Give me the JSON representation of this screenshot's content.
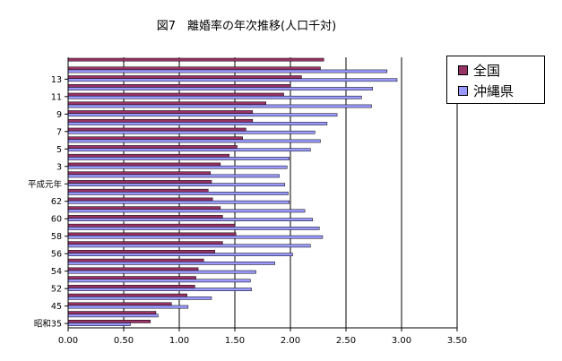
{
  "chart_data": {
    "type": "bar",
    "orientation": "horizontal",
    "title": "図7　離婚率の年次推移(人口千対)",
    "xlim": [
      0,
      3.5
    ],
    "x_ticks": [
      "0.00",
      "0.50",
      "1.00",
      "1.50",
      "2.00",
      "2.50",
      "3.00",
      "3.50"
    ],
    "grid": "vertical",
    "legend_position": "right",
    "categories": [
      "昭和35",
      "",
      "45",
      "",
      "52",
      "",
      "54",
      "",
      "56",
      "",
      "58",
      "",
      "60",
      "",
      "62",
      "",
      "平成元年",
      "",
      "3",
      "",
      "5",
      "",
      "7",
      "",
      "9",
      "",
      "11",
      "",
      "13",
      "",
      ""
    ],
    "series": [
      {
        "name": "全国",
        "color": "#993366",
        "values": [
          0.74,
          0.79,
          0.93,
          1.07,
          1.14,
          1.15,
          1.17,
          1.22,
          1.32,
          1.39,
          1.51,
          1.5,
          1.39,
          1.37,
          1.3,
          1.26,
          1.29,
          1.28,
          1.37,
          1.45,
          1.52,
          1.57,
          1.6,
          1.66,
          1.66,
          1.78,
          1.94,
          2.0,
          2.1,
          2.27,
          2.3
        ]
      },
      {
        "name": "沖縄県",
        "color": "#9999ff",
        "values": [
          0.56,
          0.81,
          1.08,
          1.29,
          1.65,
          1.64,
          1.69,
          1.86,
          2.02,
          2.18,
          2.29,
          2.26,
          2.2,
          2.13,
          1.99,
          1.98,
          1.95,
          1.9,
          1.97,
          1.99,
          2.18,
          2.27,
          2.22,
          2.33,
          2.42,
          2.73,
          2.64,
          2.74,
          2.96,
          2.87,
          0
        ]
      }
    ]
  }
}
